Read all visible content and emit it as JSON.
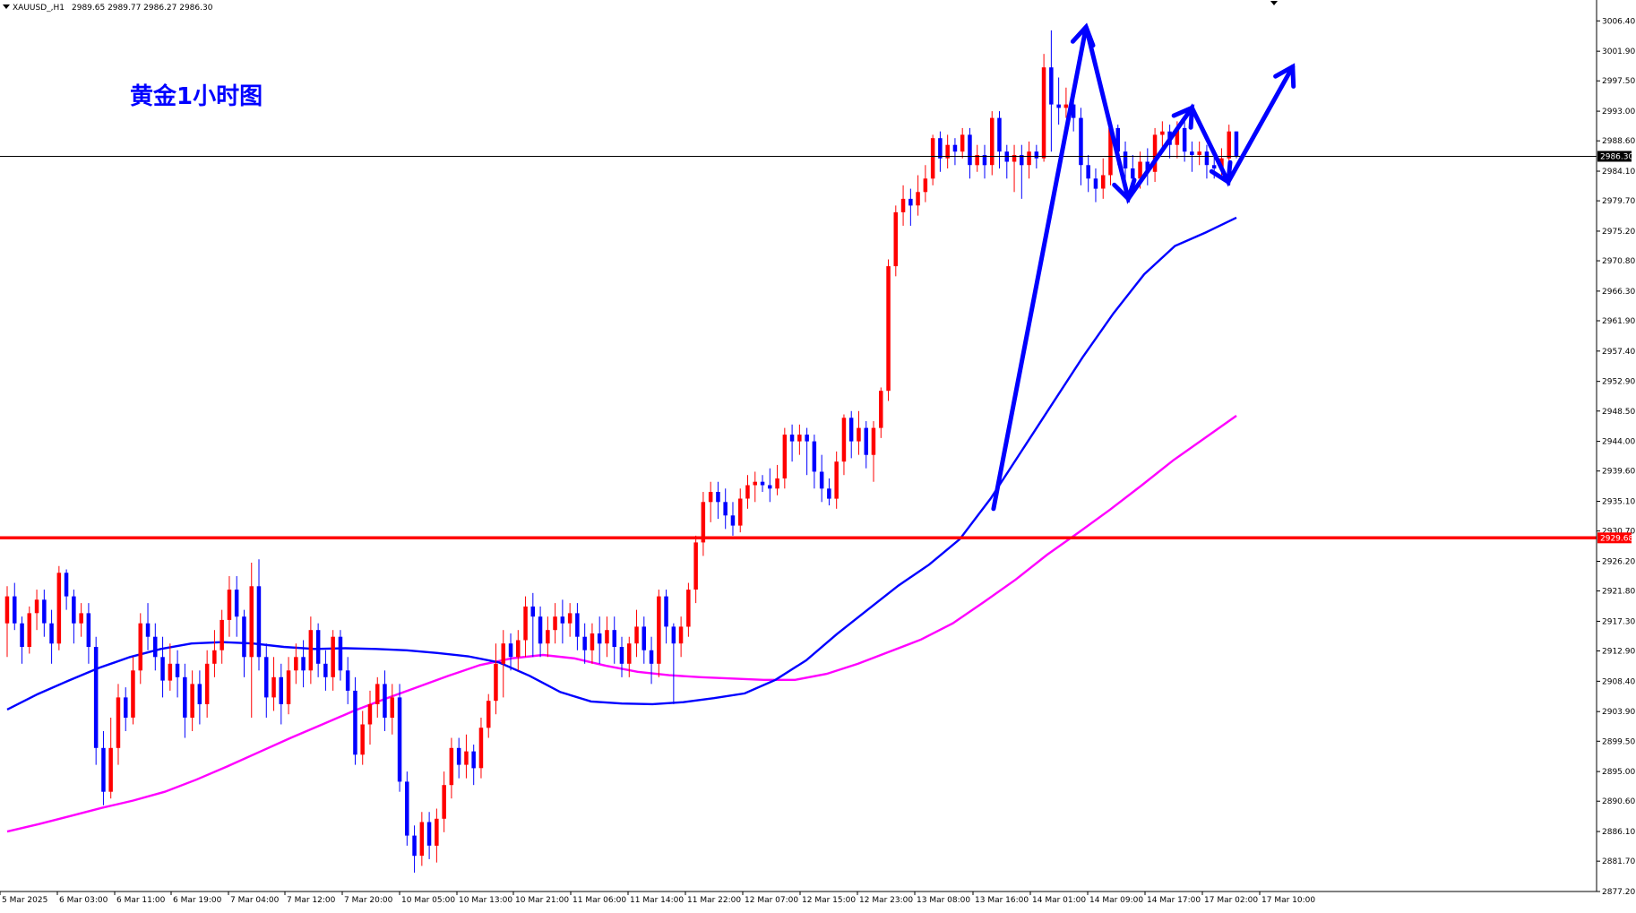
{
  "header": {
    "symbol": "XAUUSD_,H1",
    "ohlc": "2989.65 2989.77 2986.27 2986.30"
  },
  "chart_title": "黄金1小时图",
  "colors": {
    "bull": "#ff0000",
    "bear": "#0000ff",
    "ma_short": "#0000ff",
    "ma_long": "#ff00ff",
    "support_line": "#ff0000",
    "arrow": "#0000ff",
    "title": "#0000ff",
    "grid": "none"
  },
  "chart_data": {
    "type": "candlestick",
    "title": "黄金1小时图",
    "symbol": "XAUUSD",
    "timeframe": "H1",
    "ylim": [
      2877.2,
      3009.5
    ],
    "grid": false,
    "y_ticks": [
      "3006.40",
      "3001.90",
      "2997.50",
      "2993.00",
      "2988.60",
      "2984.10",
      "2979.70",
      "2975.20",
      "2970.80",
      "2966.30",
      "2961.90",
      "2957.40",
      "2952.90",
      "2948.50",
      "2944.00",
      "2939.60",
      "2935.10",
      "2930.70",
      "2926.20",
      "2921.80",
      "2917.30",
      "2912.90",
      "2908.40",
      "2903.90",
      "2899.50",
      "2895.00",
      "2890.60",
      "2886.10",
      "2881.70",
      "2877.20"
    ],
    "x_ticks": [
      "5 Mar 2025",
      "6 Mar 03:00",
      "6 Mar 11:00",
      "6 Mar 19:00",
      "7 Mar 04:00",
      "7 Mar 12:00",
      "7 Mar 20:00",
      "10 Mar 05:00",
      "10 Mar 13:00",
      "10 Mar 21:00",
      "11 Mar 06:00",
      "11 Mar 14:00",
      "11 Mar 22:00",
      "12 Mar 07:00",
      "12 Mar 15:00",
      "12 Mar 23:00",
      "13 Mar 08:00",
      "13 Mar 16:00",
      "14 Mar 01:00",
      "14 Mar 09:00",
      "14 Mar 17:00",
      "17 Mar 02:00",
      "17 Mar 10:00"
    ],
    "current_price": "2986.30",
    "support_level": "2929.68",
    "ma_short": [
      2904.2,
      2906.5,
      2908.5,
      2910.4,
      2912.0,
      2913.2,
      2914.0,
      2914.2,
      2914.0,
      2913.5,
      2913.2,
      2913.3,
      2913.2,
      2913.0,
      2912.6,
      2912.1,
      2911.2,
      2909.2,
      2906.8,
      2905.4,
      2905.1,
      2905.0,
      2905.3,
      2905.9,
      2906.6,
      2908.6,
      2911.5,
      2915.4,
      2919.0,
      2922.6,
      2925.7,
      2929.5,
      2935.5,
      2942.5,
      2949.5,
      2956.5,
      2963.0,
      2968.8,
      2973.0,
      2975.0,
      2977.2
    ],
    "ma_long": [
      2886.1,
      2887.2,
      2888.4,
      2889.6,
      2890.7,
      2892.0,
      2893.8,
      2895.8,
      2897.9,
      2900.0,
      2902.0,
      2904.0,
      2905.8,
      2907.5,
      2909.2,
      2910.8,
      2911.8,
      2912.3,
      2911.8,
      2910.7,
      2909.8,
      2909.3,
      2909.0,
      2908.8,
      2908.6,
      2908.6,
      2909.5,
      2911.0,
      2912.8,
      2914.6,
      2917.0,
      2920.2,
      2923.5,
      2927.2,
      2930.5,
      2933.9,
      2937.5,
      2941.2,
      2944.5,
      2947.8
    ],
    "candles": [
      [
        2917.0,
        2921.0,
        2912.0,
        2922.5
      ],
      [
        2921.0,
        2917.0,
        2916.0,
        2923.0
      ],
      [
        2917.0,
        2913.5,
        2911.0,
        2918.0
      ],
      [
        2913.5,
        2918.5,
        2912.5,
        2919.5
      ],
      [
        2918.5,
        2920.5,
        2916.0,
        2922.0
      ],
      [
        2920.5,
        2917.0,
        2915.0,
        2922.0
      ],
      [
        2917.0,
        2914.0,
        2911.0,
        2919.0
      ],
      [
        2914.0,
        2924.5,
        2913.0,
        2925.5
      ],
      [
        2924.5,
        2921.0,
        2919.0,
        2925.0
      ],
      [
        2921.0,
        2917.0,
        2914.0,
        2922.0
      ],
      [
        2917.0,
        2918.5,
        2915.0,
        2920.0
      ],
      [
        2918.5,
        2913.5,
        2911.0,
        2920.0
      ],
      [
        2913.5,
        2898.5,
        2896.0,
        2915.0
      ],
      [
        2898.5,
        2892.0,
        2890.0,
        2901.0
      ],
      [
        2892.0,
        2898.5,
        2891.0,
        2903.0
      ],
      [
        2898.5,
        2906.0,
        2896.0,
        2908.0
      ],
      [
        2906.0,
        2903.0,
        2901.0,
        2907.5
      ],
      [
        2903.0,
        2910.0,
        2902.0,
        2912.0
      ],
      [
        2910.0,
        2917.0,
        2908.0,
        2918.5
      ],
      [
        2917.0,
        2915.0,
        2913.0,
        2920.0
      ],
      [
        2915.0,
        2912.0,
        2910.0,
        2917.0
      ],
      [
        2912.0,
        2908.5,
        2906.0,
        2915.0
      ],
      [
        2908.5,
        2911.0,
        2907.0,
        2914.0
      ],
      [
        2911.0,
        2909.0,
        2906.0,
        2913.0
      ],
      [
        2909.0,
        2903.0,
        2900.0,
        2911.0
      ],
      [
        2903.0,
        2908.0,
        2901.0,
        2910.0
      ],
      [
        2908.0,
        2905.0,
        2902.0,
        2910.0
      ],
      [
        2905.0,
        2911.0,
        2903.0,
        2913.0
      ],
      [
        2911.0,
        2913.0,
        2909.0,
        2916.0
      ],
      [
        2913.0,
        2917.5,
        2911.0,
        2919.0
      ],
      [
        2917.5,
        2922.0,
        2915.0,
        2924.0
      ],
      [
        2922.0,
        2918.0,
        2915.0,
        2924.0
      ],
      [
        2918.0,
        2912.0,
        2909.0,
        2919.0
      ],
      [
        2912.0,
        2922.5,
        2903.0,
        2926.0
      ],
      [
        2922.5,
        2912.0,
        2910.0,
        2926.5
      ],
      [
        2912.0,
        2906.0,
        2903.0,
        2914.0
      ],
      [
        2906.0,
        2909.0,
        2904.0,
        2912.0
      ],
      [
        2909.0,
        2905.0,
        2902.0,
        2911.0
      ],
      [
        2905.0,
        2910.0,
        2903.5,
        2912.0
      ],
      [
        2910.0,
        2912.0,
        2908.0,
        2914.0
      ],
      [
        2912.0,
        2910.0,
        2907.5,
        2914.5
      ],
      [
        2910.0,
        2916.0,
        2908.0,
        2918.0
      ],
      [
        2916.0,
        2911.0,
        2909.0,
        2917.0
      ],
      [
        2911.0,
        2909.0,
        2907.0,
        2913.0
      ],
      [
        2909.0,
        2915.0,
        2907.0,
        2916.0
      ],
      [
        2915.0,
        2910.0,
        2908.5,
        2916.0
      ],
      [
        2910.0,
        2907.0,
        2905.0,
        2912.0
      ],
      [
        2907.0,
        2897.5,
        2896.0,
        2909.0
      ],
      [
        2897.5,
        2902.0,
        2896.0,
        2904.0
      ],
      [
        2902.0,
        2905.0,
        2899.0,
        2907.0
      ],
      [
        2905.0,
        2908.0,
        2903.0,
        2909.0
      ],
      [
        2908.0,
        2903.0,
        2901.0,
        2910.0
      ],
      [
        2903.0,
        2906.0,
        2900.5,
        2908.0
      ],
      [
        2906.0,
        2893.5,
        2892.0,
        2908.0
      ],
      [
        2893.5,
        2885.5,
        2884.0,
        2895.0
      ],
      [
        2885.5,
        2882.5,
        2880.0,
        2887.0
      ],
      [
        2882.5,
        2887.5,
        2881.0,
        2889.0
      ],
      [
        2887.5,
        2884.0,
        2882.0,
        2889.0
      ],
      [
        2884.0,
        2888.0,
        2881.5,
        2889.5
      ],
      [
        2888.0,
        2893.0,
        2886.0,
        2895.0
      ],
      [
        2893.0,
        2898.5,
        2891.0,
        2900.0
      ],
      [
        2898.5,
        2896.0,
        2894.0,
        2900.0
      ],
      [
        2896.0,
        2898.0,
        2894.0,
        2900.5
      ],
      [
        2898.0,
        2895.5,
        2893.0,
        2899.0
      ],
      [
        2895.5,
        2901.5,
        2894.0,
        2903.0
      ],
      [
        2901.5,
        2905.5,
        2900.0,
        2906.5
      ],
      [
        2905.5,
        2911.0,
        2903.5,
        2914.0
      ],
      [
        2911.0,
        2914.0,
        2906.0,
        2916.0
      ],
      [
        2914.0,
        2912.0,
        2910.0,
        2915.5
      ],
      [
        2912.0,
        2914.5,
        2910.0,
        2916.0
      ],
      [
        2914.5,
        2919.5,
        2912.0,
        2921.0
      ],
      [
        2919.5,
        2918.0,
        2912.0,
        2921.5
      ],
      [
        2918.0,
        2914.0,
        2912.0,
        2919.5
      ],
      [
        2914.0,
        2916.0,
        2912.0,
        2918.0
      ],
      [
        2916.0,
        2918.0,
        2914.0,
        2920.0
      ],
      [
        2918.0,
        2917.0,
        2914.0,
        2920.5
      ],
      [
        2917.0,
        2918.5,
        2915.0,
        2920.0
      ],
      [
        2918.5,
        2915.0,
        2913.0,
        2920.0
      ],
      [
        2915.0,
        2913.0,
        2911.0,
        2917.0
      ],
      [
        2913.0,
        2915.5,
        2911.0,
        2917.0
      ],
      [
        2915.5,
        2914.0,
        2911.0,
        2918.0
      ],
      [
        2914.0,
        2916.0,
        2912.0,
        2918.0
      ],
      [
        2916.0,
        2913.5,
        2911.0,
        2918.0
      ],
      [
        2913.5,
        2911.0,
        2909.0,
        2915.0
      ],
      [
        2911.0,
        2914.0,
        2909.0,
        2915.0
      ],
      [
        2914.0,
        2916.5,
        2912.0,
        2919.0
      ],
      [
        2916.5,
        2913.0,
        2911.0,
        2918.0
      ],
      [
        2913.0,
        2911.0,
        2908.0,
        2915.0
      ],
      [
        2911.0,
        2921.0,
        2909.0,
        2922.0
      ],
      [
        2921.0,
        2916.5,
        2914.0,
        2922.0
      ],
      [
        2916.5,
        2914.0,
        2905.0,
        2917.0
      ],
      [
        2914.0,
        2916.5,
        2912.0,
        2918.0
      ],
      [
        2916.5,
        2922.0,
        2915.0,
        2923.0
      ],
      [
        2922.0,
        2929.0,
        2920.0,
        2930.0
      ],
      [
        2929.0,
        2935.0,
        2927.0,
        2936.5
      ],
      [
        2935.0,
        2936.5,
        2932.0,
        2938.0
      ],
      [
        2936.5,
        2935.0,
        2932.5,
        2938.0
      ],
      [
        2935.0,
        2933.0,
        2931.0,
        2937.0
      ],
      [
        2933.0,
        2931.5,
        2930.0,
        2935.0
      ],
      [
        2931.5,
        2935.5,
        2930.5,
        2937.0
      ],
      [
        2935.5,
        2937.5,
        2934.0,
        2939.0
      ],
      [
        2937.5,
        2938.0,
        2935.0,
        2939.5
      ],
      [
        2938.0,
        2937.5,
        2936.5,
        2939.0
      ],
      [
        2937.5,
        2937.0,
        2935.0,
        2940.0
      ],
      [
        2937.0,
        2938.5,
        2936.0,
        2940.5
      ],
      [
        2938.5,
        2945.0,
        2937.0,
        2946.0
      ],
      [
        2945.0,
        2944.0,
        2941.0,
        2946.5
      ],
      [
        2944.0,
        2945.0,
        2942.0,
        2946.5
      ],
      [
        2945.0,
        2944.0,
        2939.0,
        2946.0
      ],
      [
        2944.0,
        2939.5,
        2937.0,
        2945.0
      ],
      [
        2939.5,
        2937.0,
        2935.0,
        2942.0
      ],
      [
        2937.0,
        2935.5,
        2934.5,
        2938.5
      ],
      [
        2935.5,
        2941.0,
        2934.0,
        2942.5
      ],
      [
        2941.0,
        2947.5,
        2939.0,
        2948.0
      ],
      [
        2947.5,
        2944.0,
        2941.5,
        2948.5
      ],
      [
        2944.0,
        2946.0,
        2942.0,
        2948.5
      ],
      [
        2946.0,
        2942.0,
        2940.0,
        2947.0
      ],
      [
        2942.0,
        2946.0,
        2938.0,
        2947.0
      ],
      [
        2946.0,
        2951.5,
        2944.5,
        2952.0
      ],
      [
        2951.5,
        2970.0,
        2950.0,
        2971.0
      ],
      [
        2970.0,
        2978.0,
        2968.5,
        2979.0
      ],
      [
        2978.0,
        2980.0,
        2976.0,
        2982.0
      ],
      [
        2980.0,
        2979.0,
        2976.0,
        2981.5
      ],
      [
        2979.0,
        2981.0,
        2977.5,
        2983.5
      ],
      [
        2981.0,
        2983.0,
        2979.5,
        2985.0
      ],
      [
        2983.0,
        2989.0,
        2982.0,
        2989.5
      ],
      [
        2989.0,
        2986.0,
        2984.0,
        2990.0
      ],
      [
        2986.0,
        2988.0,
        2984.5,
        2989.5
      ],
      [
        2988.0,
        2987.0,
        2985.0,
        2989.0
      ],
      [
        2987.0,
        2989.5,
        2986.0,
        2990.5
      ],
      [
        2989.5,
        2985.0,
        2983.0,
        2990.5
      ],
      [
        2985.0,
        2986.5,
        2984.0,
        2988.0
      ],
      [
        2986.5,
        2985.0,
        2983.0,
        2988.0
      ],
      [
        2985.0,
        2992.0,
        2983.5,
        2993.0
      ],
      [
        2992.0,
        2987.0,
        2984.5,
        2993.0
      ],
      [
        2987.0,
        2985.5,
        2983.0,
        2988.0
      ],
      [
        2985.5,
        2986.5,
        2981.0,
        2988.0
      ],
      [
        2986.5,
        2985.0,
        2980.0,
        2988.0
      ],
      [
        2985.0,
        2987.0,
        2983.0,
        2988.5
      ],
      [
        2987.0,
        2986.0,
        2984.5,
        2988.0
      ],
      [
        2986.0,
        2999.5,
        2985.5,
        3001.5
      ],
      [
        2999.5,
        2994.0,
        2987.0,
        3005.0
      ],
      [
        2994.0,
        2993.5,
        2991.0,
        2998.0
      ],
      [
        2993.5,
        2994.0,
        2992.0,
        2996.5
      ],
      [
        2994.0,
        2992.0,
        2990.0,
        2995.0
      ],
      [
        2992.0,
        2985.0,
        2982.0,
        2993.5
      ],
      [
        2985.0,
        2983.0,
        2981.0,
        2986.5
      ],
      [
        2983.0,
        2981.5,
        2979.5,
        2984.5
      ],
      [
        2981.5,
        2983.5,
        2980.0,
        2986.0
      ],
      [
        2983.5,
        2990.5,
        2982.0,
        2991.0
      ],
      [
        2990.5,
        2987.0,
        2985.0,
        2991.0
      ],
      [
        2987.0,
        2984.5,
        2982.5,
        2988.5
      ],
      [
        2984.5,
        2983.0,
        2981.0,
        2986.5
      ],
      [
        2983.0,
        2985.5,
        2981.5,
        2987.0
      ],
      [
        2985.5,
        2984.0,
        2982.0,
        2987.5
      ],
      [
        2984.0,
        2989.5,
        2982.5,
        2990.5
      ],
      [
        2989.5,
        2990.0,
        2987.5,
        2991.5
      ],
      [
        2990.0,
        2988.0,
        2986.0,
        2991.0
      ],
      [
        2988.0,
        2990.5,
        2986.0,
        2991.5
      ],
      [
        2990.5,
        2987.0,
        2985.5,
        2991.5
      ],
      [
        2987.0,
        2986.5,
        2984.0,
        2988.5
      ],
      [
        2986.5,
        2987.0,
        2985.0,
        2988.5
      ],
      [
        2987.0,
        2985.0,
        2983.0,
        2988.0
      ],
      [
        2985.0,
        2984.5,
        2983.0,
        2986.5
      ],
      [
        2984.5,
        2986.0,
        2983.5,
        2987.5
      ],
      [
        2986.0,
        2990.0,
        2985.0,
        2991.0
      ],
      [
        2990.0,
        2986.3,
        2986.0,
        2990.0
      ]
    ]
  }
}
